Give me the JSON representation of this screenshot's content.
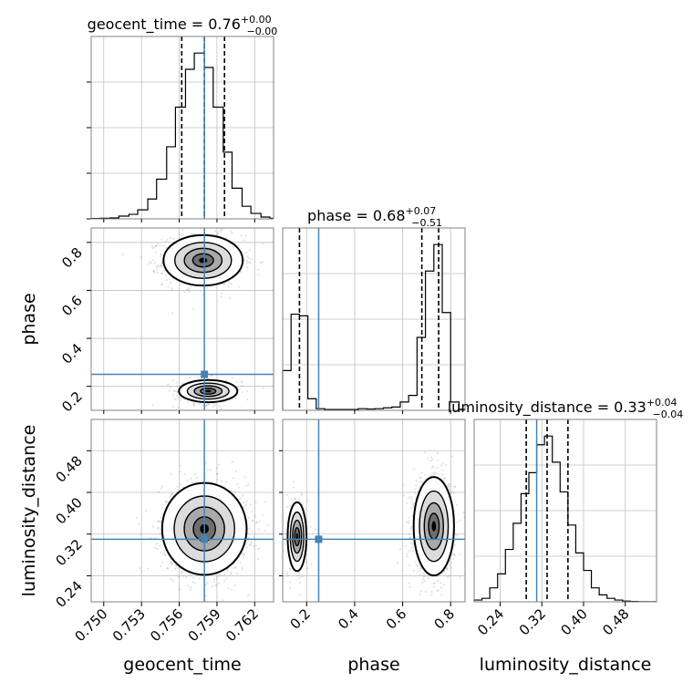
{
  "chart_data": {
    "type": "corner",
    "parameters": [
      "geocent_time",
      "phase",
      "luminosity_distance"
    ],
    "injection": {
      "geocent_time": 0.758,
      "phase": 0.25,
      "luminosity_distance": 0.31
    },
    "colors": {
      "truth": "#4682b4",
      "line": "#000000",
      "grid": "#c0c0c0",
      "samples": "#808080"
    },
    "titles": {
      "geocent_time": {
        "text": "geocent_time = 0.76",
        "sup": "+0.00",
        "sub": "−0.00"
      },
      "phase": {
        "text": "phase = 0.68",
        "sup": "+0.07",
        "sub": "−0.51"
      },
      "luminosity_distance": {
        "text": "luminosity_distance = 0.33",
        "sup": "+0.04",
        "sub": "−0.04"
      }
    },
    "axes": {
      "geocent_time": {
        "range": [
          0.749,
          0.7635
        ],
        "ticks": [
          0.75,
          0.753,
          0.756,
          0.759,
          0.762
        ],
        "tick_labels": [
          "0.750",
          "0.753",
          "0.756",
          "0.759",
          "0.762"
        ]
      },
      "phase": {
        "range": [
          0.1,
          0.86
        ],
        "ticks": [
          0.2,
          0.4,
          0.6,
          0.8
        ],
        "tick_labels": [
          "0.2",
          "0.4",
          "0.6",
          "0.8"
        ]
      },
      "luminosity_distance": {
        "range": [
          0.19,
          0.54
        ],
        "ticks": [
          0.24,
          0.32,
          0.4,
          0.48
        ],
        "tick_labels": [
          "0.24",
          "0.32",
          "0.40",
          "0.48"
        ]
      }
    },
    "histograms": {
      "geocent_time": {
        "edges": [
          0.749,
          0.7497,
          0.7505,
          0.7512,
          0.752,
          0.7527,
          0.7535,
          0.7542,
          0.755,
          0.7557,
          0.7565,
          0.7572,
          0.758,
          0.7587,
          0.7595,
          0.7602,
          0.761,
          0.7617,
          0.7625,
          0.7632,
          0.7635
        ],
        "counts": [
          0.2,
          0.3,
          0.5,
          1.5,
          2.5,
          5,
          11,
          22,
          40,
          62,
          83,
          92,
          84,
          62,
          37,
          17,
          7,
          3,
          1,
          0.3
        ],
        "quantile_lines": [
          0.7562,
          0.758,
          0.7596
        ]
      },
      "phase": {
        "edges": [
          0.1,
          0.135,
          0.17,
          0.205,
          0.24,
          0.275,
          0.31,
          0.345,
          0.38,
          0.415,
          0.45,
          0.485,
          0.52,
          0.555,
          0.59,
          0.625,
          0.66,
          0.695,
          0.73,
          0.765,
          0.8,
          0.835,
          0.86
        ],
        "counts": [
          24,
          58,
          57,
          7,
          1,
          0.5,
          0.5,
          0.5,
          0.5,
          1,
          0.8,
          1,
          1.5,
          2,
          5,
          9,
          44,
          84,
          100,
          59,
          5,
          0.6
        ],
        "quantile_lines": [
          0.17,
          0.68,
          0.75
        ]
      },
      "luminosity_distance": {
        "edges": [
          0.19,
          0.205,
          0.22,
          0.235,
          0.25,
          0.265,
          0.28,
          0.295,
          0.31,
          0.325,
          0.34,
          0.355,
          0.37,
          0.385,
          0.4,
          0.415,
          0.43,
          0.445,
          0.46,
          0.475,
          0.49,
          0.505,
          0.52,
          0.54
        ],
        "counts": [
          1,
          2,
          8,
          16,
          30,
          45,
          62,
          74,
          90,
          95,
          80,
          63,
          44,
          28,
          18,
          8,
          4,
          2,
          1,
          0.4,
          0.2,
          0.1,
          0.1
        ],
        "quantile_lines": [
          0.29,
          0.33,
          0.37
        ]
      }
    },
    "contours": {
      "phase_vs_geocent_time": {
        "x": "geocent_time",
        "y": "phase",
        "modes": [
          {
            "center": [
              0.7579,
              0.725
            ],
            "sigma": [
              0.0015,
              0.05
            ],
            "weight": 0.8
          },
          {
            "center": [
              0.7583,
              0.18
            ],
            "sigma": [
              0.0013,
              0.026
            ],
            "weight": 0.2
          }
        ]
      },
      "distance_vs_geocent_time": {
        "x": "geocent_time",
        "y": "luminosity_distance",
        "modes": [
          {
            "center": [
              0.758,
              0.33
            ],
            "sigma": [
              0.0016,
              0.042
            ],
            "weight": 1.0
          }
        ]
      },
      "distance_vs_phase": {
        "x": "phase",
        "y": "luminosity_distance",
        "modes": [
          {
            "center": [
              0.73,
              0.335
            ],
            "sigma": [
              0.04,
              0.045
            ],
            "weight": 0.8
          },
          {
            "center": [
              0.16,
              0.315
            ],
            "sigma": [
              0.022,
              0.037
            ],
            "weight": 0.2
          }
        ]
      }
    }
  }
}
